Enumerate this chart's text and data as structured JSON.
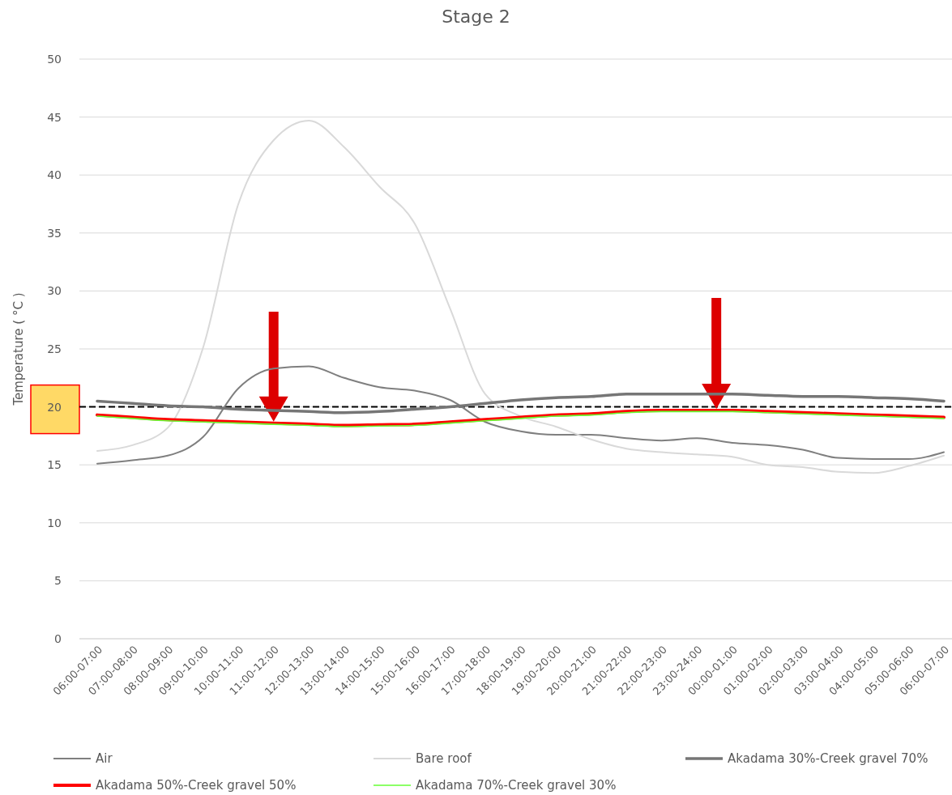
{
  "chart_data": {
    "type": "line",
    "title": "Stage 2",
    "ylabel": "Temperature ( °C )",
    "categories": [
      "06:00-07:00",
      "07:00-08:00",
      "08:00-09:00",
      "09:00-10:00",
      "10:00-11:00",
      "11:00-12:00",
      "12:00-13:00",
      "13:00-14:00",
      "14:00-15:00",
      "15:00-16:00",
      "16:00-17:00",
      "17:00-18:00",
      "18:00-19:00",
      "19:00-20:00",
      "20:00-21:00",
      "21:00-22:00",
      "22:00-23:00",
      "23:00-24:00",
      "00:00-01:00",
      "01:00-02:00",
      "02:00-03:00",
      "03:00-04:00",
      "04:00-05:00",
      "05:00-06:00",
      "06:00-07:00"
    ],
    "series": [
      {
        "name": "Air",
        "color": "#7f7f7f",
        "values": [
          15.1,
          15.4,
          15.8,
          17.4,
          21.6,
          23.3,
          23.5,
          22.5,
          21.7,
          21.4,
          20.6,
          18.7,
          17.9,
          17.6,
          17.6,
          17.3,
          17.1,
          17.3,
          16.9,
          16.7,
          16.3,
          15.6,
          15.5,
          15.5,
          16.1
        ]
      },
      {
        "name": "Bare roof",
        "color": "#d9d9d9",
        "values": [
          16.2,
          16.7,
          18.2,
          25.1,
          37.5,
          43.0,
          44.7,
          42.4,
          39.0,
          35.8,
          28.5,
          21.1,
          19.2,
          18.3,
          17.2,
          16.4,
          16.1,
          15.9,
          15.7,
          15.0,
          14.8,
          14.4,
          14.3,
          14.9,
          15.8
        ]
      },
      {
        "name": "Akadama 30%-Creek gravel 70%",
        "color": "#767676",
        "values": [
          20.5,
          20.3,
          20.1,
          20.0,
          19.8,
          19.7,
          19.6,
          19.5,
          19.6,
          19.8,
          20.0,
          20.3,
          20.6,
          20.8,
          20.9,
          21.1,
          21.1,
          21.1,
          21.1,
          21.0,
          20.9,
          20.9,
          20.8,
          20.7,
          20.5
        ]
      },
      {
        "name": "Akadama 50%-Creek gravel 50%",
        "color": "#ff0000",
        "values": [
          19.3,
          19.1,
          18.9,
          18.8,
          18.7,
          18.6,
          18.5,
          18.4,
          18.45,
          18.5,
          18.7,
          18.9,
          19.1,
          19.3,
          19.4,
          19.6,
          19.7,
          19.7,
          19.7,
          19.6,
          19.5,
          19.4,
          19.3,
          19.2,
          19.1
        ]
      },
      {
        "name": "Akadama 70%-Creek gravel 30%",
        "color": "#66ff33",
        "values": [
          19.2,
          19.0,
          18.8,
          18.7,
          18.6,
          18.5,
          18.4,
          18.3,
          18.35,
          18.4,
          18.6,
          18.8,
          19.0,
          19.2,
          19.3,
          19.5,
          19.6,
          19.6,
          19.6,
          19.5,
          19.4,
          19.3,
          19.2,
          19.1,
          19.0
        ]
      }
    ],
    "ylim": [
      0,
      50
    ],
    "yticks": [
      0,
      5,
      10,
      15,
      20,
      25,
      30,
      35,
      40,
      45,
      50
    ],
    "grid": "y",
    "legend": "bottom",
    "marker": "none",
    "line_style": "solid",
    "ref_lines": [
      {
        "axis": "y",
        "value": 20,
        "color": "#000000",
        "line_style": "dashed"
      }
    ]
  }
}
